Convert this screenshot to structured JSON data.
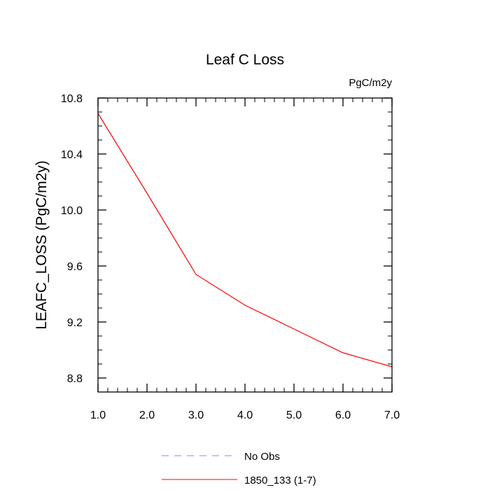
{
  "chart_data": {
    "type": "line",
    "title": "Leaf C Loss",
    "units_label": "PgC/m2y",
    "ylabel": "LEAFC_LOSS  (PgC/m2y)",
    "xlabel": "",
    "xlim": [
      1.0,
      7.0
    ],
    "ylim": [
      8.7,
      10.8
    ],
    "x_ticks": [
      1.0,
      2.0,
      3.0,
      4.0,
      5.0,
      6.0,
      7.0
    ],
    "x_tick_labels": [
      "1.0",
      "2.0",
      "3.0",
      "4.0",
      "5.0",
      "6.0",
      "7.0"
    ],
    "y_ticks": [
      8.8,
      9.2,
      9.6,
      10.0,
      10.4,
      10.8
    ],
    "y_tick_labels": [
      "8.8",
      "9.2",
      "9.6",
      "10.0",
      "10.4",
      "10.8"
    ],
    "grid": false,
    "legend_position": "bottom",
    "series": [
      {
        "name": "1850_133 (1-7)",
        "color": "#ff0000",
        "style": "solid",
        "x": [
          1,
          2,
          3,
          4,
          5,
          6,
          7
        ],
        "y": [
          10.69,
          10.12,
          9.54,
          9.32,
          9.15,
          8.98,
          8.88
        ]
      }
    ],
    "legend": [
      {
        "label": "No Obs",
        "color": "#8080ff",
        "style": "dashed"
      },
      {
        "label": "1850_133 (1-7)",
        "color": "#ff0000",
        "style": "solid"
      }
    ]
  }
}
